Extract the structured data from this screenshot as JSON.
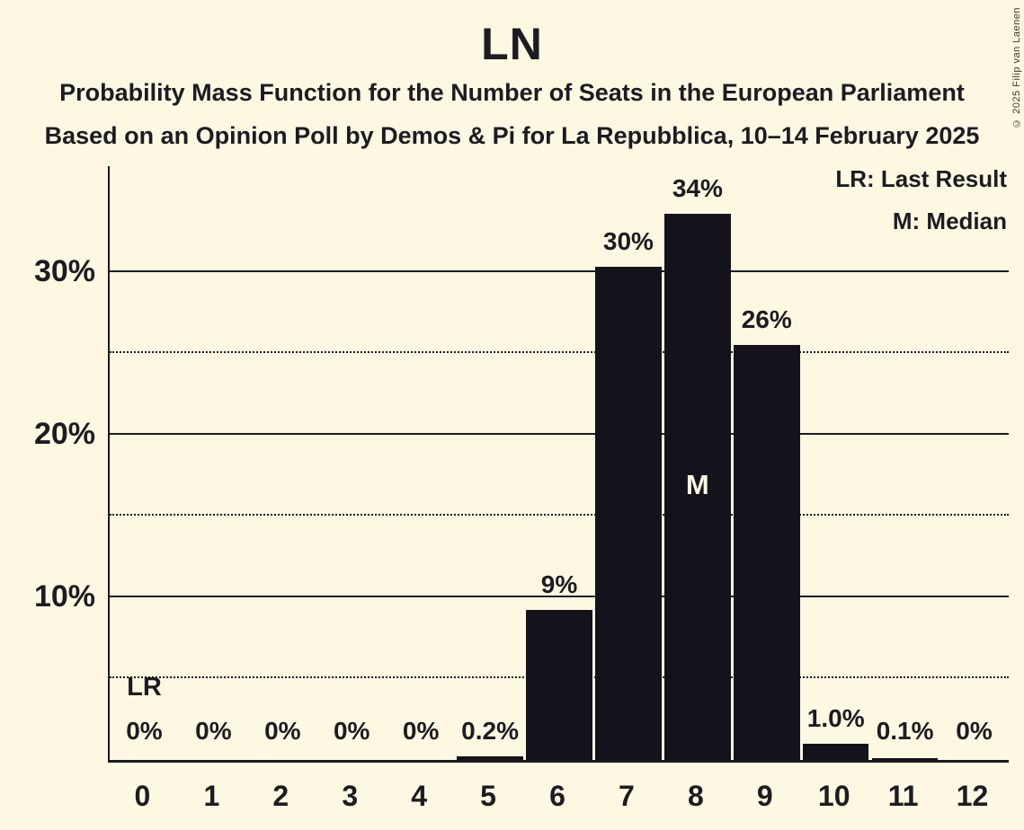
{
  "header": {
    "title": "LN",
    "subtitle1": "Probability Mass Function for the Number of Seats in the European Parliament",
    "subtitle2": "Based on an Opinion Poll by Demos & Pi for La Repubblica, 10–14 February 2025"
  },
  "legend": {
    "lr_label": "LR: Last Result",
    "m_label": "M: Median"
  },
  "copyright": "© 2025 Filip van Laenen",
  "colors": {
    "background": "#FDF8E1",
    "bar": "#14121A",
    "text": "#1D1B22"
  },
  "chart_data": {
    "type": "bar",
    "title": "LN",
    "categories": [
      "0",
      "1",
      "2",
      "3",
      "4",
      "5",
      "6",
      "7",
      "8",
      "9",
      "10",
      "11",
      "12"
    ],
    "values": [
      0,
      0,
      0,
      0,
      0,
      0.2,
      9.2,
      30.3,
      33.6,
      25.5,
      1.0,
      0.1,
      0
    ],
    "labels": [
      "0%",
      "0%",
      "0%",
      "0%",
      "0%",
      "0.2%",
      "9%",
      "30%",
      "34%",
      "26%",
      "1.0%",
      "0.1%",
      "0%"
    ],
    "yticks": [
      {
        "pct": 10,
        "label": "10%"
      },
      {
        "pct": 20,
        "label": "20%"
      },
      {
        "pct": 30,
        "label": "30%"
      }
    ],
    "minor_gridlines_pct": [
      5,
      15,
      25
    ],
    "ylim": [
      0,
      36.5
    ],
    "grid": "horizontal",
    "legend_position": "top-right",
    "annotations": {
      "lr_text": "LR",
      "lr_seat": 0,
      "median_text": "M",
      "median_seat": 8
    }
  }
}
